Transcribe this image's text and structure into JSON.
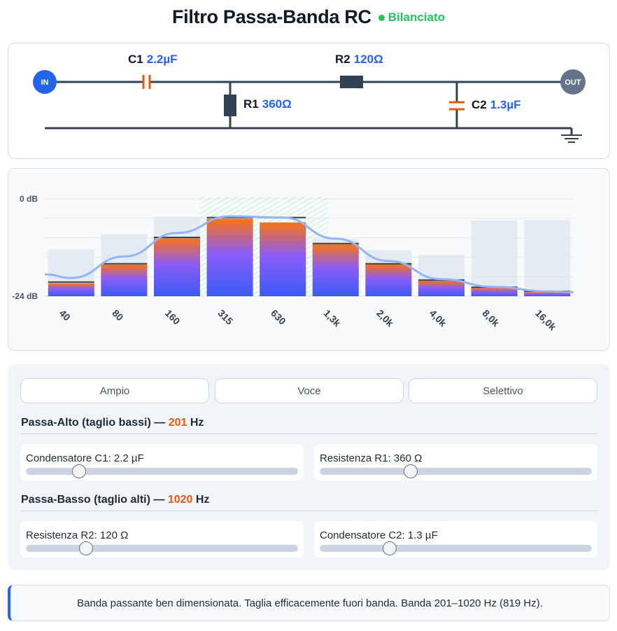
{
  "header": {
    "title": "Filtro Passa-Banda RC",
    "status": "Bilanciato",
    "status_color": "#22c55e"
  },
  "circuit": {
    "in_label": "IN",
    "out_label": "OUT",
    "c1": {
      "name": "C1",
      "value": "2.2µF"
    },
    "r2": {
      "name": "R2",
      "value": "120Ω"
    },
    "r1": {
      "name": "R1",
      "value": "360Ω"
    },
    "c2": {
      "name": "C2",
      "value": "1.3µF"
    }
  },
  "chart_data": {
    "type": "bar",
    "categories": [
      "40",
      "80",
      "160",
      "315",
      "630",
      "1,3k",
      "2,0k",
      "4,0k",
      "8,0k",
      "16,0k"
    ],
    "ylim": [
      -24,
      0
    ],
    "yticks": [
      "0 dB",
      "-24 dB"
    ],
    "series": [
      {
        "values": [
          -20.8,
          -16.2,
          -9.7,
          -4.9,
          -5.8,
          -11.2,
          -16.1,
          -20.2,
          -22.0,
          -23.0
        ]
      },
      {
        "values": [
          -12.5,
          -8.7,
          -4.4,
          -4.5,
          -7.5,
          -9.9,
          -12.6,
          -13.8,
          -5.3,
          -5.2
        ]
      },
      {
        "values": [
          -20.5,
          -16.0,
          -9.5,
          -4.6,
          -4.6,
          -11.0,
          -16.0,
          -20.0,
          -21.8,
          -22.8
        ]
      }
    ],
    "response_curve": {
      "x": [
        "40",
        "80",
        "160",
        "315",
        "630",
        "1,3k",
        "2,0k",
        "4,0k",
        "8,0k",
        "16,0k"
      ],
      "y": [
        -19.5,
        -14.2,
        -8.4,
        -4.3,
        -4.6,
        -9.8,
        -15.3,
        -19.8,
        -21.7,
        -22.8
      ]
    },
    "passband": {
      "from": 201,
      "to": 1020
    },
    "colors": {
      "bar_top": "#f97316",
      "bar_mid": "#8b5cf6",
      "bar_bottom": "#3b5bf6",
      "target": "#e2e8f0",
      "curve": "#93b4f5",
      "band": "#86efac"
    }
  },
  "controls": {
    "presets": [
      "Ampio",
      "Voce",
      "Selettivo"
    ],
    "highpass": {
      "title": "Passa-Alto (taglio bassi) —",
      "freq": "201",
      "unit": "Hz",
      "sliders": [
        {
          "label": "Condensatore C1: 2.2 µF",
          "level": 0.195
        },
        {
          "label": "Resistenza R1: 360 Ω",
          "level": 0.335
        }
      ]
    },
    "lowpass": {
      "title": "Passa-Basso (taglio alti) —",
      "freq": "1020",
      "unit": "Hz",
      "sliders": [
        {
          "label": "Resistenza R2: 120 Ω",
          "level": 0.222
        },
        {
          "label": "Condensatore C2: 1.3 µF",
          "level": 0.256
        }
      ]
    }
  },
  "note": {
    "text": "Banda passante ben dimensionata. Taglia efficacemente fuori banda. Banda 201–1020 Hz (819 Hz)."
  }
}
